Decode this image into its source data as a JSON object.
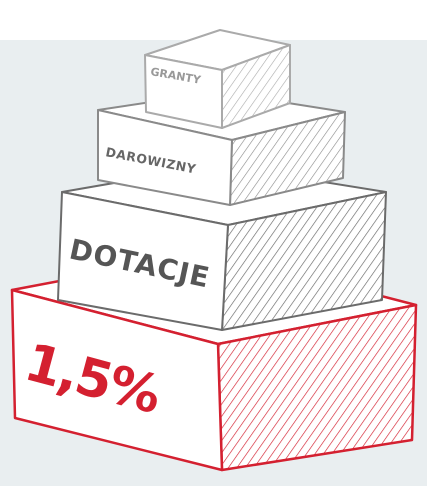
{
  "blocks": [
    {
      "label": "GRANTY"
    },
    {
      "label": "DAROWIZNY"
    },
    {
      "label": "DOTACJE"
    },
    {
      "label": "1,5%"
    }
  ]
}
